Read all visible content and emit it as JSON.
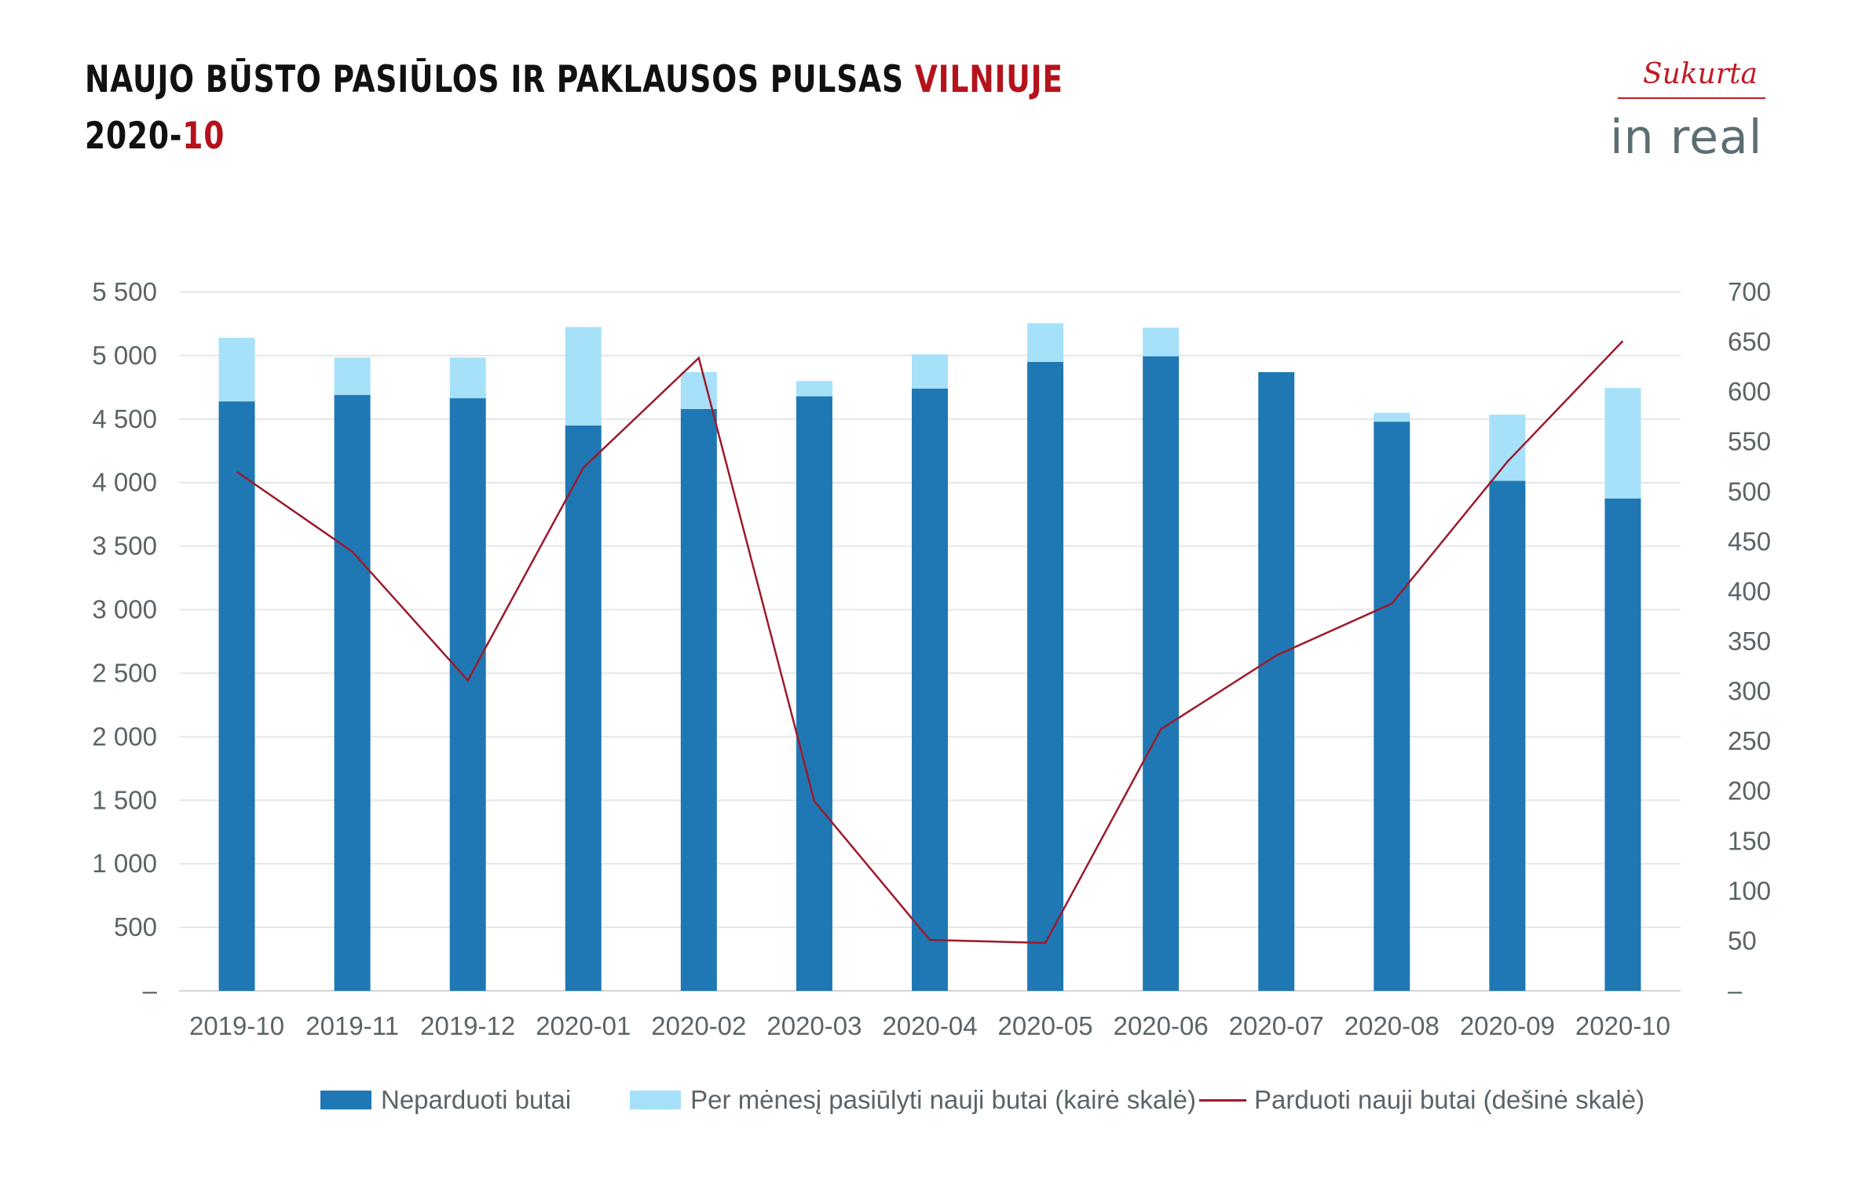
{
  "title": {
    "line1_prefix": "NAUJO BŪSTO PASIŪLOS IR PAKLAUSOS PULSAS ",
    "line1_accent": "VILNIUJE",
    "line2_prefix": "2020-",
    "line2_accent": "10"
  },
  "logo": {
    "tagline": "Sukurta",
    "brand": "in real"
  },
  "colors": {
    "unsold": "#1f78b4",
    "offered": "#a6e1f9",
    "sold": "#9c1a2c",
    "grid": "#e6e6e6",
    "accent": "#b5121b"
  },
  "chart_data": {
    "type": "bar",
    "stacked": true,
    "categories": [
      "2019-10",
      "2019-11",
      "2019-12",
      "2020-01",
      "2020-02",
      "2020-03",
      "2020-04",
      "2020-05",
      "2020-06",
      "2020-07",
      "2020-08",
      "2020-09",
      "2020-10"
    ],
    "series": [
      {
        "name": "Neparduoti butai",
        "type": "bar",
        "axis": "left",
        "values": [
          4640,
          4690,
          4665,
          4450,
          4580,
          4680,
          4740,
          4950,
          4995,
          4870,
          4480,
          4015,
          3875
        ]
      },
      {
        "name": "Per mėnesį pasiūlyti nauji butai (kairė skalė)",
        "type": "bar",
        "axis": "left",
        "values": [
          500,
          295,
          320,
          775,
          290,
          120,
          270,
          305,
          225,
          0,
          70,
          520,
          870
        ]
      },
      {
        "name": "Parduoti nauji butai (dešinė skalė)",
        "type": "line",
        "axis": "right",
        "values": [
          520,
          440,
          311,
          524,
          634,
          190,
          51,
          48,
          262,
          336,
          388,
          530,
          651
        ]
      }
    ],
    "left_axis": {
      "min": 0,
      "max": 5500,
      "step": 500,
      "tick_labels": [
        "–",
        "500",
        "1 000",
        "1 500",
        "2 000",
        "2 500",
        "3 000",
        "3 500",
        "4 000",
        "4 500",
        "5 000",
        "5 500"
      ]
    },
    "right_axis": {
      "min": 0,
      "max": 700,
      "step": 50,
      "tick_labels": [
        "–",
        "50",
        "100",
        "150",
        "200",
        "250",
        "300",
        "350",
        "400",
        "450",
        "500",
        "550",
        "600",
        "650",
        "700"
      ]
    },
    "grid": true,
    "legend_position": "bottom"
  }
}
